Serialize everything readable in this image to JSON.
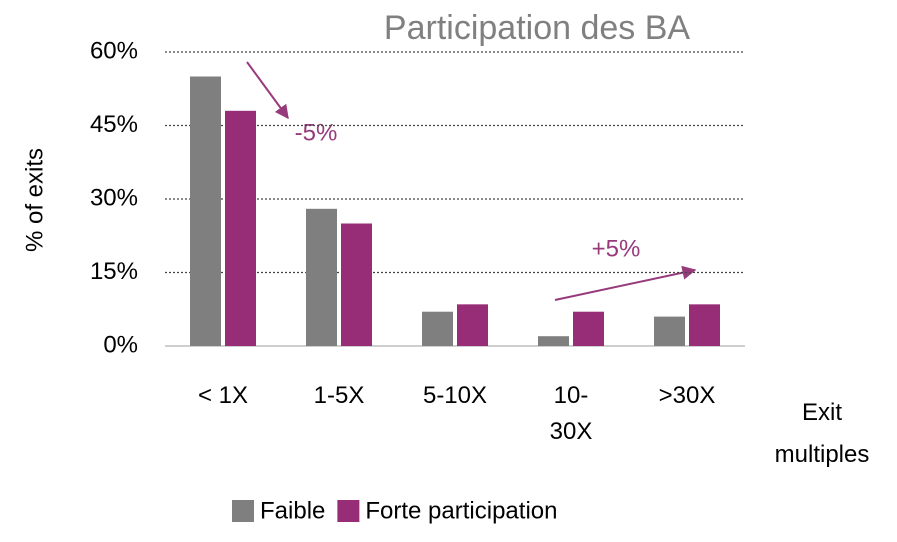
{
  "chart_data": {
    "type": "bar",
    "title": "Participation des BA",
    "y_label": "% of exits",
    "x_label": "Exit multiples",
    "categories": [
      "< 1X",
      "1-5X",
      "5-10X",
      "10-30X",
      ">30X"
    ],
    "series": [
      {
        "name": "Faible",
        "color": "#7f7f7f",
        "values": [
          55,
          28,
          7,
          2,
          6
        ]
      },
      {
        "name": "Forte participation",
        "color": "#972d77",
        "values": [
          48,
          25,
          8.5,
          7,
          8.5
        ]
      }
    ],
    "ylim": [
      0,
      60
    ],
    "yticks": [
      {
        "value": 0,
        "label": "0%"
      },
      {
        "value": 15,
        "label": "15%"
      },
      {
        "value": 30,
        "label": "30%"
      },
      {
        "value": 45,
        "label": "45%"
      },
      {
        "value": 60,
        "label": "60%"
      }
    ],
    "grid": true,
    "legend": "bottom",
    "annotations": [
      "-5%",
      "+5%"
    ]
  }
}
